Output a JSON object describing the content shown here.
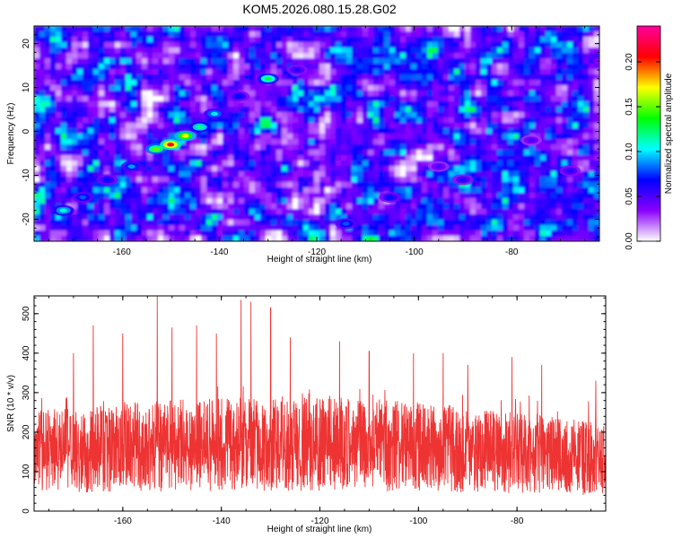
{
  "title": "KOM5.2026.080.15.28.G02",
  "chart_data": [
    {
      "type": "heatmap",
      "xlabel": "Height of straight line (km)",
      "ylabel": "Frequency (Hz)",
      "xlim": [
        -178,
        -62
      ],
      "ylim": [
        -25,
        24
      ],
      "xticks": [
        -160,
        -140,
        -120,
        -100,
        -80
      ],
      "yticks": [
        -20,
        -10,
        0,
        10,
        20
      ],
      "colorbar": {
        "label": "Normalized spectral amplitude",
        "range": [
          0,
          0.24
        ],
        "ticks": [
          0.0,
          0.05,
          0.1,
          0.15,
          0.2
        ],
        "tick_labels": [
          "0.00",
          "0.05",
          "0.10",
          "0.15",
          "0.20"
        ],
        "colors": [
          "#ffffff",
          "#8a00ff",
          "#0000ff",
          "#00ffff",
          "#00ff00",
          "#ffff00",
          "#ff0000",
          "#ff00a0"
        ]
      },
      "blobs": [
        {
          "h": -172,
          "f": -18,
          "a": 0.11
        },
        {
          "h": -168,
          "f": -15,
          "a": 0.08
        },
        {
          "h": -163,
          "f": -11,
          "a": 0.07
        },
        {
          "h": -158,
          "f": -8,
          "a": 0.09
        },
        {
          "h": -153,
          "f": -4,
          "a": 0.15
        },
        {
          "h": -150,
          "f": -3,
          "a": 0.21
        },
        {
          "h": -147,
          "f": -1,
          "a": 0.17
        },
        {
          "h": -144,
          "f": 1,
          "a": 0.12
        },
        {
          "h": -141,
          "f": 4,
          "a": 0.1
        },
        {
          "h": -136,
          "f": 8,
          "a": 0.07
        },
        {
          "h": -130,
          "f": 12,
          "a": 0.13
        },
        {
          "h": -124,
          "f": 14,
          "a": 0.06
        },
        {
          "h": -114,
          "f": -21,
          "a": 0.08
        },
        {
          "h": -105,
          "f": -15,
          "a": 0.07
        },
        {
          "h": -95,
          "f": -8,
          "a": 0.05
        },
        {
          "h": -90,
          "f": -11,
          "a": 0.06
        },
        {
          "h": -76,
          "f": -2,
          "a": 0.05
        },
        {
          "h": -68,
          "f": -9,
          "a": 0.06
        }
      ]
    },
    {
      "type": "line",
      "xlabel": "Height of straight line (km)",
      "ylabel": "SNR (10 * v/v)",
      "xlim": [
        -178,
        -62
      ],
      "ylim": [
        0,
        545
      ],
      "xticks": [
        -160,
        -140,
        -120,
        -100,
        -80
      ],
      "yticks": [
        0,
        100,
        200,
        300,
        400,
        500
      ],
      "color": "#ee3333",
      "points": 2600,
      "baseline_snr": 150,
      "peaks": [
        {
          "x": -153,
          "y": 545
        },
        {
          "x": -136,
          "y": 535
        },
        {
          "x": -134,
          "y": 530
        },
        {
          "x": -130,
          "y": 515
        },
        {
          "x": -166,
          "y": 470
        },
        {
          "x": -150,
          "y": 465
        },
        {
          "x": -145,
          "y": 470
        },
        {
          "x": -141,
          "y": 450
        },
        {
          "x": -126,
          "y": 440
        },
        {
          "x": -160,
          "y": 450
        },
        {
          "x": -116,
          "y": 430
        },
        {
          "x": -170,
          "y": 400
        },
        {
          "x": -110,
          "y": 405
        },
        {
          "x": -101,
          "y": 400
        },
        {
          "x": -95,
          "y": 400
        },
        {
          "x": -81,
          "y": 390
        },
        {
          "x": -90,
          "y": 370
        },
        {
          "x": -75,
          "y": 370
        },
        {
          "x": -64,
          "y": 330
        }
      ]
    }
  ]
}
